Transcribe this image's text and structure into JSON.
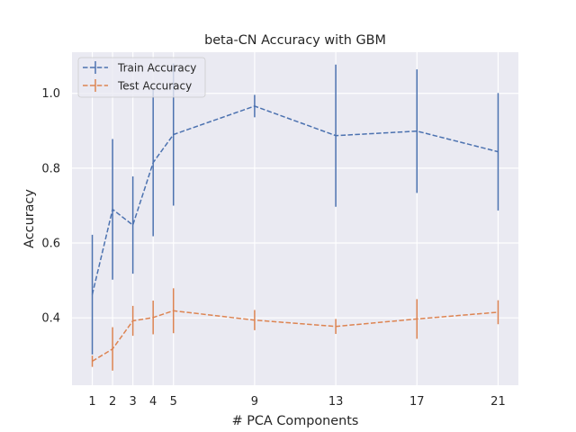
{
  "chart_data": {
    "type": "line",
    "title": "beta-CN Accuracy with GBM",
    "xlabel": "# PCA Components",
    "ylabel": "Accuracy",
    "x": [
      1,
      2,
      3,
      4,
      5,
      9,
      13,
      17,
      21
    ],
    "x_ticks": [
      1,
      2,
      3,
      4,
      5,
      9,
      13,
      17,
      21
    ],
    "y_ticks": [
      0.4,
      0.6,
      0.8,
      1.0
    ],
    "y_tick_labels": [
      "0.4",
      "0.6",
      "0.8",
      "1.0"
    ],
    "xlim": [
      0,
      22
    ],
    "ylim": [
      0.22,
      1.11
    ],
    "grid": true,
    "legend_position": "top-left",
    "line_style": "dashed",
    "error_bars": true,
    "series": [
      {
        "name": "Train Accuracy",
        "color": "#4c72b0",
        "values": [
          0.462,
          0.69,
          0.648,
          0.815,
          0.89,
          0.966,
          0.887,
          0.899,
          0.844
        ],
        "errors": [
          0.16,
          0.188,
          0.13,
          0.197,
          0.19,
          0.03,
          0.19,
          0.165,
          0.157
        ]
      },
      {
        "name": "Test Accuracy",
        "color": "#dd8452",
        "values": [
          0.284,
          0.317,
          0.392,
          0.401,
          0.419,
          0.394,
          0.377,
          0.397,
          0.415
        ],
        "errors": [
          0.015,
          0.058,
          0.04,
          0.045,
          0.06,
          0.027,
          0.02,
          0.053,
          0.032
        ]
      }
    ]
  }
}
